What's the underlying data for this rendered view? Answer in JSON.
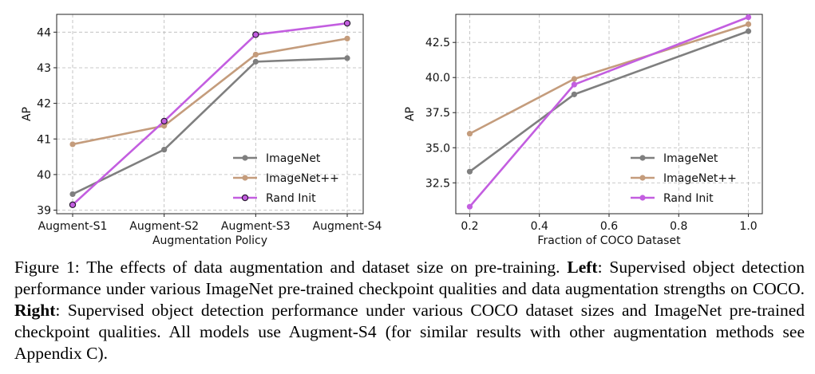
{
  "chart_data": [
    {
      "type": "line",
      "xlabel": "Augmentation Policy",
      "ylabel": "AP",
      "categories": [
        "Augment-S1",
        "Augment-S2",
        "Augment-S3",
        "Augment-S4"
      ],
      "ylim": [
        38.9,
        44.5
      ],
      "yticks": [
        39,
        40,
        41,
        42,
        43,
        44
      ],
      "ytick_labels": [
        "39",
        "40",
        "41",
        "42",
        "43",
        "44"
      ],
      "grid": true,
      "legend_position": "lower-right",
      "series": [
        {
          "name": "ImageNet",
          "color": "#7f7f7f",
          "values": [
            39.45,
            40.7,
            43.17,
            43.27
          ]
        },
        {
          "name": "ImageNet++",
          "color": "#c49c7c",
          "values": [
            40.85,
            41.37,
            43.37,
            43.82
          ]
        },
        {
          "name": "Rand Init",
          "color": "#c35ee0",
          "values": [
            39.15,
            41.5,
            43.93,
            44.25
          ]
        }
      ]
    },
    {
      "type": "line",
      "xlabel": "Fraction of COCO Dataset",
      "ylabel": "AP",
      "x": [
        0.2,
        0.5,
        1.0
      ],
      "xlim": [
        0.16,
        1.04
      ],
      "xticks": [
        0.2,
        0.4,
        0.6,
        0.8,
        1.0
      ],
      "xtick_labels": [
        "0.2",
        "0.4",
        "0.6",
        "0.8",
        "1.0"
      ],
      "ylim": [
        30.3,
        44.5
      ],
      "yticks": [
        32.5,
        35.0,
        37.5,
        40.0,
        42.5
      ],
      "ytick_labels": [
        "32.5",
        "35.0",
        "37.5",
        "40.0",
        "42.5"
      ],
      "grid": true,
      "legend_position": "lower-right",
      "series": [
        {
          "name": "ImageNet",
          "color": "#7f7f7f",
          "values": [
            33.3,
            38.8,
            43.3
          ]
        },
        {
          "name": "ImageNet++",
          "color": "#c49c7c",
          "values": [
            36.0,
            39.9,
            43.8
          ]
        },
        {
          "name": "Rand Init",
          "color": "#c35ee0",
          "values": [
            30.8,
            39.5,
            44.3
          ]
        }
      ]
    }
  ],
  "caption": {
    "figure_label": "Figure 1:",
    "intro": " The effects of data augmentation and dataset size on pre-training. ",
    "left_label": "Left",
    "left_text": ": Supervised object detection performance under various ImageNet pre-trained checkpoint qualities and data augmentation strengths on COCO. ",
    "right_label": "Right",
    "right_text": ": Supervised object detection performance under various COCO dataset sizes and ImageNet pre-trained checkpoint qualities. All models use Augment-S4 (for similar results with other augmentation methods see Appendix C)."
  }
}
